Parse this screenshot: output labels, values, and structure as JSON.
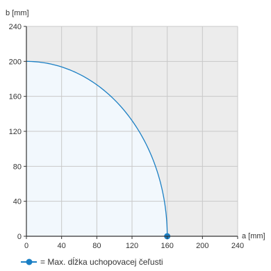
{
  "chart_data": {
    "type": "area",
    "x_axis": {
      "label": "a [mm]",
      "range": [
        0,
        240
      ],
      "ticks": [
        0,
        40,
        80,
        120,
        160,
        200,
        240
      ]
    },
    "y_axis": {
      "label": "b [mm]",
      "range": [
        0,
        240
      ],
      "ticks": [
        0,
        40,
        80,
        120,
        160,
        200,
        240
      ]
    },
    "grid": true,
    "series": [
      {
        "name": "Max. dĺžka uchopovacej čeľusti",
        "shape": "quarter-ellipse",
        "x_intercept": 160,
        "y_intercept": 200,
        "marker": {
          "x": 160,
          "y": 0
        }
      }
    ],
    "legend": {
      "position": "bottom-left",
      "text": "= Max. dĺžka uchopovacej čeľusti"
    },
    "colors": {
      "curve": "#1a7fc4",
      "valid_fill": "#f2f8fd",
      "outside_fill": "#ececec",
      "grid": "#c8c8c8",
      "axis": "#333333"
    }
  }
}
